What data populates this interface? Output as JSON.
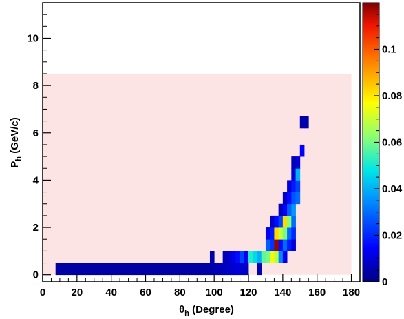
{
  "chart_data": {
    "type": "heatmap",
    "xlabel": {
      "main": "θ",
      "sub": "h",
      "rest": " (Degree)"
    },
    "ylabel": {
      "main": "P",
      "sub": "h",
      "rest": " (GeV/c)"
    },
    "xlim": [
      0,
      185
    ],
    "ylim": [
      -0.3,
      11.5
    ],
    "xticks": [
      0,
      20,
      40,
      60,
      80,
      100,
      120,
      140,
      160,
      180
    ],
    "yticks": [
      0,
      2,
      4,
      6,
      8,
      10
    ],
    "zlim": [
      0,
      0.12
    ],
    "colorbar_ticks": [
      "0",
      "0.02",
      "0.04",
      "0.06",
      "0.08",
      "0.1"
    ],
    "colorbar_tick_values": [
      0,
      0.02,
      0.04,
      0.06,
      0.08,
      0.1
    ],
    "acceptance_region": {
      "x": [
        0,
        180
      ],
      "y": [
        0,
        8.5
      ],
      "color": "#fde4e4"
    },
    "bin_width_x": 2.5,
    "bin_height_y": 0.5,
    "bins": [
      {
        "x": 7.5,
        "y": 0.0,
        "z": 0.004
      },
      {
        "x": 10,
        "y": 0.0,
        "z": 0.004
      },
      {
        "x": 12.5,
        "y": 0.0,
        "z": 0.004
      },
      {
        "x": 15,
        "y": 0.0,
        "z": 0.004
      },
      {
        "x": 17.5,
        "y": 0.0,
        "z": 0.004
      },
      {
        "x": 20,
        "y": 0.0,
        "z": 0.004
      },
      {
        "x": 22.5,
        "y": 0.0,
        "z": 0.004
      },
      {
        "x": 25,
        "y": 0.0,
        "z": 0.004
      },
      {
        "x": 27.5,
        "y": 0.0,
        "z": 0.004
      },
      {
        "x": 30,
        "y": 0.0,
        "z": 0.004
      },
      {
        "x": 32.5,
        "y": 0.0,
        "z": 0.004
      },
      {
        "x": 35,
        "y": 0.0,
        "z": 0.004
      },
      {
        "x": 37.5,
        "y": 0.0,
        "z": 0.004
      },
      {
        "x": 40,
        "y": 0.0,
        "z": 0.004
      },
      {
        "x": 42.5,
        "y": 0.0,
        "z": 0.004
      },
      {
        "x": 45,
        "y": 0.0,
        "z": 0.004
      },
      {
        "x": 47.5,
        "y": 0.0,
        "z": 0.004
      },
      {
        "x": 50,
        "y": 0.0,
        "z": 0.004
      },
      {
        "x": 52.5,
        "y": 0.0,
        "z": 0.004
      },
      {
        "x": 55,
        "y": 0.0,
        "z": 0.004
      },
      {
        "x": 57.5,
        "y": 0.0,
        "z": 0.004
      },
      {
        "x": 60,
        "y": 0.0,
        "z": 0.004
      },
      {
        "x": 62.5,
        "y": 0.0,
        "z": 0.004
      },
      {
        "x": 65,
        "y": 0.0,
        "z": 0.004
      },
      {
        "x": 67.5,
        "y": 0.0,
        "z": 0.004
      },
      {
        "x": 70,
        "y": 0.0,
        "z": 0.004
      },
      {
        "x": 72.5,
        "y": 0.0,
        "z": 0.004
      },
      {
        "x": 75,
        "y": 0.0,
        "z": 0.004
      },
      {
        "x": 77.5,
        "y": 0.0,
        "z": 0.004
      },
      {
        "x": 80,
        "y": 0.0,
        "z": 0.004
      },
      {
        "x": 82.5,
        "y": 0.0,
        "z": 0.004
      },
      {
        "x": 85,
        "y": 0.0,
        "z": 0.004
      },
      {
        "x": 87.5,
        "y": 0.0,
        "z": 0.004
      },
      {
        "x": 90,
        "y": 0.0,
        "z": 0.004
      },
      {
        "x": 92.5,
        "y": 0.0,
        "z": 0.004
      },
      {
        "x": 95,
        "y": 0.0,
        "z": 0.004
      },
      {
        "x": 97.5,
        "y": 0.0,
        "z": 0.005
      },
      {
        "x": 100,
        "y": 0.0,
        "z": 0.006
      },
      {
        "x": 102.5,
        "y": 0.0,
        "z": 0.006
      },
      {
        "x": 105,
        "y": 0.0,
        "z": 0.007
      },
      {
        "x": 107.5,
        "y": 0.0,
        "z": 0.008
      },
      {
        "x": 110,
        "y": 0.0,
        "z": 0.009
      },
      {
        "x": 112.5,
        "y": 0.0,
        "z": 0.01
      },
      {
        "x": 115,
        "y": 0.0,
        "z": 0.009
      },
      {
        "x": 117.5,
        "y": 0.0,
        "z": 0.008
      },
      {
        "x": 125,
        "y": 0.0,
        "z": 0.006
      },
      {
        "x": 97.5,
        "y": 0.5,
        "z": 0.005
      },
      {
        "x": 105,
        "y": 0.5,
        "z": 0.007
      },
      {
        "x": 107.5,
        "y": 0.5,
        "z": 0.008
      },
      {
        "x": 110,
        "y": 0.5,
        "z": 0.012
      },
      {
        "x": 112.5,
        "y": 0.5,
        "z": 0.016
      },
      {
        "x": 115,
        "y": 0.5,
        "z": 0.024
      },
      {
        "x": 117.5,
        "y": 0.5,
        "z": 0.014
      },
      {
        "x": 120,
        "y": 0.5,
        "z": 0.052
      },
      {
        "x": 122.5,
        "y": 0.5,
        "z": 0.046
      },
      {
        "x": 125,
        "y": 0.5,
        "z": 0.04
      },
      {
        "x": 127.5,
        "y": 0.5,
        "z": 0.058
      },
      {
        "x": 130,
        "y": 0.5,
        "z": 0.06
      },
      {
        "x": 132.5,
        "y": 0.5,
        "z": 0.075
      },
      {
        "x": 135,
        "y": 0.5,
        "z": 0.068
      },
      {
        "x": 137.5,
        "y": 0.5,
        "z": 0.034
      },
      {
        "x": 140,
        "y": 0.5,
        "z": 0.012
      },
      {
        "x": 130,
        "y": 1.0,
        "z": 0.028
      },
      {
        "x": 132.5,
        "y": 1.0,
        "z": 0.022
      },
      {
        "x": 135,
        "y": 1.0,
        "z": 0.118
      },
      {
        "x": 137.5,
        "y": 1.0,
        "z": 0.016
      },
      {
        "x": 140,
        "y": 1.0,
        "z": 0.03
      },
      {
        "x": 142.5,
        "y": 1.0,
        "z": 0.018
      },
      {
        "x": 145,
        "y": 1.0,
        "z": 0.01
      },
      {
        "x": 130,
        "y": 1.5,
        "z": 0.012
      },
      {
        "x": 132.5,
        "y": 1.5,
        "z": 0.018
      },
      {
        "x": 135,
        "y": 1.5,
        "z": 0.082
      },
      {
        "x": 137.5,
        "y": 1.5,
        "z": 0.07
      },
      {
        "x": 140,
        "y": 1.5,
        "z": 0.06
      },
      {
        "x": 142.5,
        "y": 1.5,
        "z": 0.03
      },
      {
        "x": 145,
        "y": 1.5,
        "z": 0.02
      },
      {
        "x": 132.5,
        "y": 2.0,
        "z": 0.008
      },
      {
        "x": 135,
        "y": 2.0,
        "z": 0.016
      },
      {
        "x": 137.5,
        "y": 2.0,
        "z": 0.024
      },
      {
        "x": 140,
        "y": 2.0,
        "z": 0.082
      },
      {
        "x": 142.5,
        "y": 2.0,
        "z": 0.062
      },
      {
        "x": 145,
        "y": 2.0,
        "z": 0.03
      },
      {
        "x": 137.5,
        "y": 2.5,
        "z": 0.006
      },
      {
        "x": 140,
        "y": 2.5,
        "z": 0.014
      },
      {
        "x": 142.5,
        "y": 2.5,
        "z": 0.028
      },
      {
        "x": 145,
        "y": 2.5,
        "z": 0.036
      },
      {
        "x": 140,
        "y": 3.0,
        "z": 0.008
      },
      {
        "x": 142.5,
        "y": 3.0,
        "z": 0.016
      },
      {
        "x": 145,
        "y": 3.0,
        "z": 0.026
      },
      {
        "x": 147.5,
        "y": 3.0,
        "z": 0.03
      },
      {
        "x": 142.5,
        "y": 3.5,
        "z": 0.01
      },
      {
        "x": 145,
        "y": 3.5,
        "z": 0.018
      },
      {
        "x": 147.5,
        "y": 3.5,
        "z": 0.024
      },
      {
        "x": 145,
        "y": 4.0,
        "z": 0.01
      },
      {
        "x": 147.5,
        "y": 4.0,
        "z": 0.04
      },
      {
        "x": 145,
        "y": 4.5,
        "z": 0.006
      },
      {
        "x": 147.5,
        "y": 4.5,
        "z": 0.01
      },
      {
        "x": 150,
        "y": 5.0,
        "z": 0.014
      },
      {
        "x": 150,
        "y": 6.2,
        "z": 0.005
      },
      {
        "x": 152.5,
        "y": 6.2,
        "z": 0.005
      }
    ]
  }
}
